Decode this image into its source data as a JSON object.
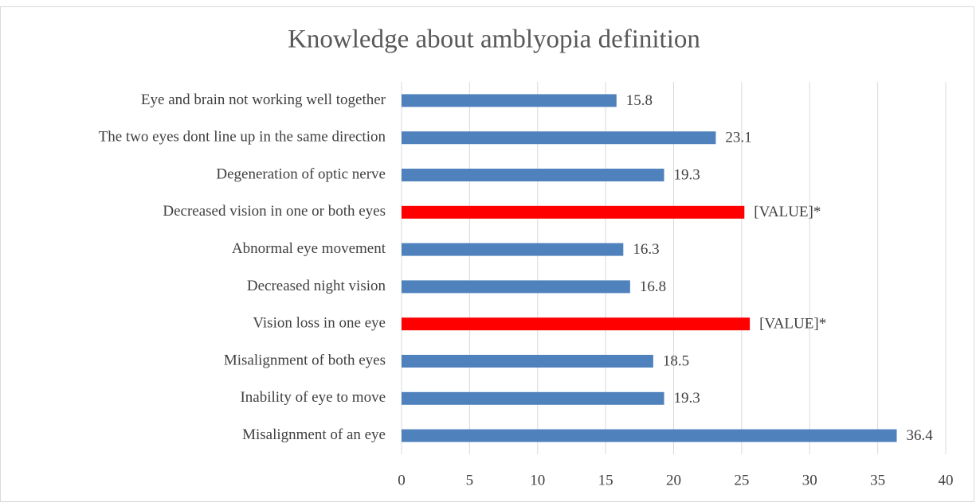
{
  "chart_data": {
    "type": "hbar",
    "title": "Knowledge about amblyopia definition",
    "categories": [
      "Eye and brain not working well together",
      "The two eyes dont line up in the same direction",
      "Degeneration of optic nerve",
      "Decreased vision in one or both eyes",
      "Abnormal eye movement",
      "Decreased night vision",
      "Vision loss in one eye",
      "Misalignment of both eyes",
      "Inability of eye to move",
      "Misalignment of an eye"
    ],
    "values": [
      15.8,
      23.1,
      19.3,
      25.2,
      16.3,
      16.8,
      25.6,
      18.5,
      19.3,
      36.4
    ],
    "value_labels": [
      "15.8",
      "23.1",
      "19.3",
      "[VALUE]*",
      "16.3",
      "16.8",
      "[VALUE]*",
      "18.5",
      "19.3",
      "36.4"
    ],
    "colors": [
      "#4f81bd",
      "#4f81bd",
      "#4f81bd",
      "#ff0000",
      "#4f81bd",
      "#4f81bd",
      "#ff0000",
      "#4f81bd",
      "#4f81bd",
      "#4f81bd"
    ],
    "xlim": [
      0,
      40
    ],
    "xticks": [
      0,
      5,
      10,
      15,
      20,
      25,
      30,
      35,
      40
    ],
    "grid": true
  }
}
